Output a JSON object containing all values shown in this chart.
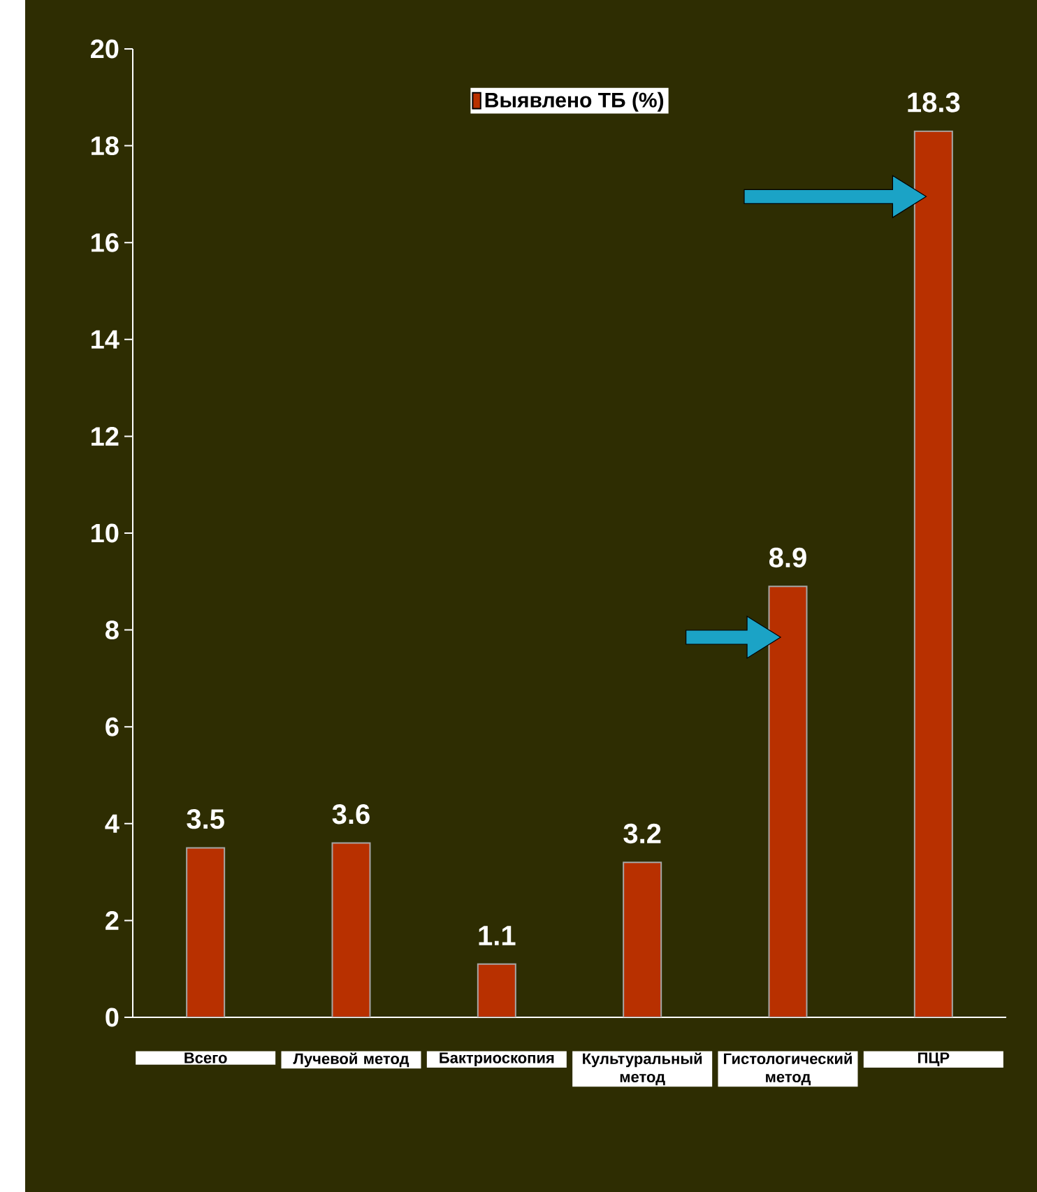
{
  "chart_data": {
    "type": "bar",
    "categories": [
      "Всего",
      "Лучевой метод",
      "Бактриоскопия",
      "Культуральный метод",
      "Гистологический метод",
      "ПЦР"
    ],
    "series": [
      {
        "name": "Выявлено ТБ (%)",
        "color": "#b83000",
        "values": [
          3.5,
          3.6,
          1.1,
          3.2,
          8.9,
          18.3
        ]
      }
    ],
    "ylim": [
      0,
      20
    ],
    "yticks": [
      0,
      2,
      4,
      6,
      8,
      10,
      12,
      14,
      16,
      18,
      20
    ],
    "data_labels": true,
    "legend": "top",
    "grid": false
  }
}
